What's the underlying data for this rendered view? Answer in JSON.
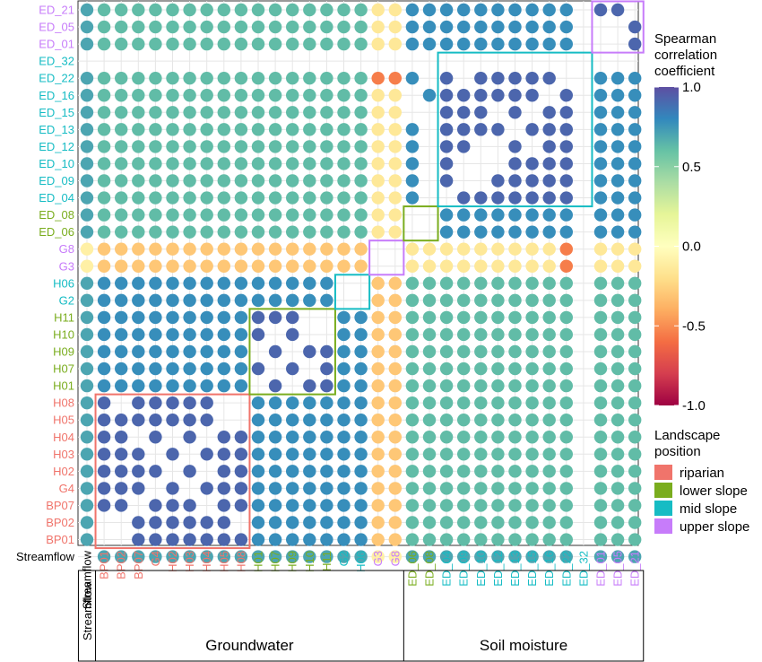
{
  "chart_data": {
    "type": "heatmap",
    "rows_top_to_bottom": [
      "ED_21",
      "ED_05",
      "ED_01",
      "ED_32",
      "ED_22",
      "ED_16",
      "ED_15",
      "ED_13",
      "ED_12",
      "ED_10",
      "ED_09",
      "ED_04",
      "ED_08",
      "ED_06",
      "G8",
      "G3",
      "H06",
      "G2",
      "H11",
      "H10",
      "H09",
      "H07",
      "H01",
      "H08",
      "H05",
      "H04",
      "H03",
      "H02",
      "G4",
      "BP07",
      "BP02",
      "BP01",
      "Streamflow"
    ],
    "columns_left_to_right": [
      "Streamflow",
      "BP01",
      "BP02",
      "BP07",
      "G4",
      "H02",
      "H03",
      "H04",
      "H05",
      "H08",
      "H01",
      "H07",
      "H09",
      "H10",
      "H11",
      "G2",
      "H06",
      "G3",
      "G8",
      "ED_06",
      "ED_08",
      "ED_04",
      "ED_09",
      "ED_10",
      "ED_12",
      "ED_13",
      "ED_15",
      "ED_16",
      "ED_22",
      "ED_32",
      "ED_01",
      "ED_05",
      "ED_21"
    ],
    "group_labels": [
      {
        "name": "Streamflow",
        "span": [
          0,
          0
        ]
      },
      {
        "name": "Groundwater",
        "span": [
          1,
          18
        ]
      },
      {
        "name": "Soil moisture",
        "span": [
          19,
          32
        ]
      }
    ],
    "landscape_position": {
      "Streamflow": "none",
      "BP01": "riparian",
      "BP02": "riparian",
      "BP07": "riparian",
      "G4": "riparian",
      "H02": "riparian",
      "H03": "riparian",
      "H04": "riparian",
      "H05": "riparian",
      "H08": "riparian",
      "H01": "lower slope",
      "H07": "lower slope",
      "H09": "lower slope",
      "H10": "lower slope",
      "H11": "lower slope",
      "G2": "mid slope",
      "H06": "mid slope",
      "G3": "upper slope",
      "G8": "upper slope",
      "ED_06": "lower slope",
      "ED_08": "lower slope",
      "ED_04": "mid slope",
      "ED_09": "mid slope",
      "ED_10": "mid slope",
      "ED_12": "mid slope",
      "ED_13": "mid slope",
      "ED_15": "mid slope",
      "ED_16": "mid slope",
      "ED_22": "mid slope",
      "ED_32": "mid slope",
      "ED_01": "upper slope",
      "ED_05": "upper slope",
      "ED_21": "upper slope"
    },
    "value_range": [
      -1.0,
      1.0
    ],
    "empty_cells": [
      "ED_32:*",
      "ED_22:ED_08",
      "ED_22:ED_09",
      "ED_16:ED_06",
      "ED_15:ED_06",
      "ED_15:ED_08",
      "ED_13:ED_08",
      "ED_12:ED_08",
      "ED_10:ED_08",
      "ED_09:ED_08",
      "ED_04:ED_08",
      "ED_05:ED_01",
      "ED_01:ED_05",
      "ED_10:ED_09",
      "ED_09:ED_10",
      "ED_10:ED_12",
      "ED_12:ED_10",
      "ED_12:ED_15",
      "ED_15:ED_12",
      "ED_08:ED_06",
      "ED_06:ED_08",
      "G8:G3",
      "G3:G8",
      "H06:G2",
      "G2:H06",
      "H10:H07",
      "H07:H10",
      "H09:H01",
      "H01:H09",
      "H10:H11",
      "H11:H10",
      "H08:BP02",
      "BP02:H08",
      "H04:BP07",
      "BP07:H04",
      "H03:G4",
      "G4:H03",
      "H02:H04",
      "H04:H02",
      "H05:H08",
      "H08:H05",
      "BP01:BP02",
      "BP02:BP01"
    ],
    "color_scale": {
      "name": "Spectral",
      "stops": [
        {
          "v": -1.0,
          "c": "#9e0142"
        },
        {
          "v": -0.8,
          "c": "#d53e4f"
        },
        {
          "v": -0.6,
          "c": "#f46d43"
        },
        {
          "v": -0.4,
          "c": "#fdae61"
        },
        {
          "v": -0.2,
          "c": "#fee08b"
        },
        {
          "v": 0.0,
          "c": "#ffffbf"
        },
        {
          "v": 0.2,
          "c": "#e6f598"
        },
        {
          "v": 0.4,
          "c": "#abdda4"
        },
        {
          "v": 0.6,
          "c": "#66c2a5"
        },
        {
          "v": 0.8,
          "c": "#3288bd"
        },
        {
          "v": 1.0,
          "c": "#5e4fa2"
        }
      ]
    },
    "legend": {
      "colorbar_title_lines": [
        "Spearman",
        "correlation",
        "coefficient"
      ],
      "colorbar_ticks": [
        "1.0",
        "0.5",
        "0.0",
        "-0.5",
        "-1.0"
      ],
      "landscape_title_lines": [
        "Landscape",
        "position"
      ],
      "landscape_items": [
        {
          "label": "riparian",
          "color": "#f0746b"
        },
        {
          "label": "lower slope",
          "color": "#7aad1e"
        },
        {
          "label": "mid slope",
          "color": "#16bcc4"
        },
        {
          "label": "upper slope",
          "color": "#c77cfa"
        }
      ],
      "placement": "right"
    },
    "diagonal_blocks": [
      {
        "group": "riparian",
        "color": "#f0746b",
        "span": [
          1,
          9
        ]
      },
      {
        "group": "lower slope",
        "color": "#7aad1e",
        "span": [
          10,
          14
        ]
      },
      {
        "group": "mid slope",
        "color": "#16bcc4",
        "span": [
          15,
          16
        ]
      },
      {
        "group": "upper slope",
        "color": "#c77cfa",
        "span": [
          17,
          18
        ]
      },
      {
        "group": "lower slope",
        "color": "#7aad1e",
        "span": [
          19,
          20
        ]
      },
      {
        "group": "mid slope",
        "color": "#16bcc4",
        "span": [
          21,
          29
        ]
      },
      {
        "group": "upper slope",
        "color": "#c77cfa",
        "span": [
          30,
          32
        ]
      }
    ],
    "grid": true
  }
}
